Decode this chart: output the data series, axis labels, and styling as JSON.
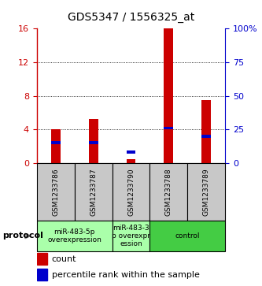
{
  "title": "GDS5347 / 1556325_at",
  "samples": [
    "GSM1233786",
    "GSM1233787",
    "GSM1233790",
    "GSM1233788",
    "GSM1233789"
  ],
  "count_values": [
    4.0,
    5.2,
    0.5,
    16.0,
    7.5
  ],
  "percentile_values_pct": [
    15.0,
    15.0,
    8.0,
    26.0,
    20.0
  ],
  "ylim_left": [
    0,
    16
  ],
  "ylim_right": [
    0,
    100
  ],
  "yticks_left": [
    0,
    4,
    8,
    12,
    16
  ],
  "yticks_right": [
    0,
    25,
    50,
    75,
    100
  ],
  "ytick_labels_right": [
    "0",
    "25",
    "50",
    "75",
    "100%"
  ],
  "bar_color": "#cc0000",
  "percentile_color": "#0000cc",
  "bar_width": 0.25,
  "axis_label_color_left": "#cc0000",
  "axis_label_color_right": "#0000cc",
  "sample_label_fontsize": 6.5,
  "group_label_fontsize": 6.5,
  "background_gray": "#c8c8c8",
  "group_spans": [
    [
      0,
      2,
      "miR-483-5p\noverexpression",
      "#aaffaa"
    ],
    [
      2,
      3,
      "miR-483-3\np overexpr\nession",
      "#aaffaa"
    ],
    [
      3,
      5,
      "control",
      "#44cc44"
    ]
  ],
  "protocol_label": "protocol",
  "legend_count_label": "count",
  "legend_percentile_label": "percentile rank within the sample",
  "title_fontsize": 10
}
